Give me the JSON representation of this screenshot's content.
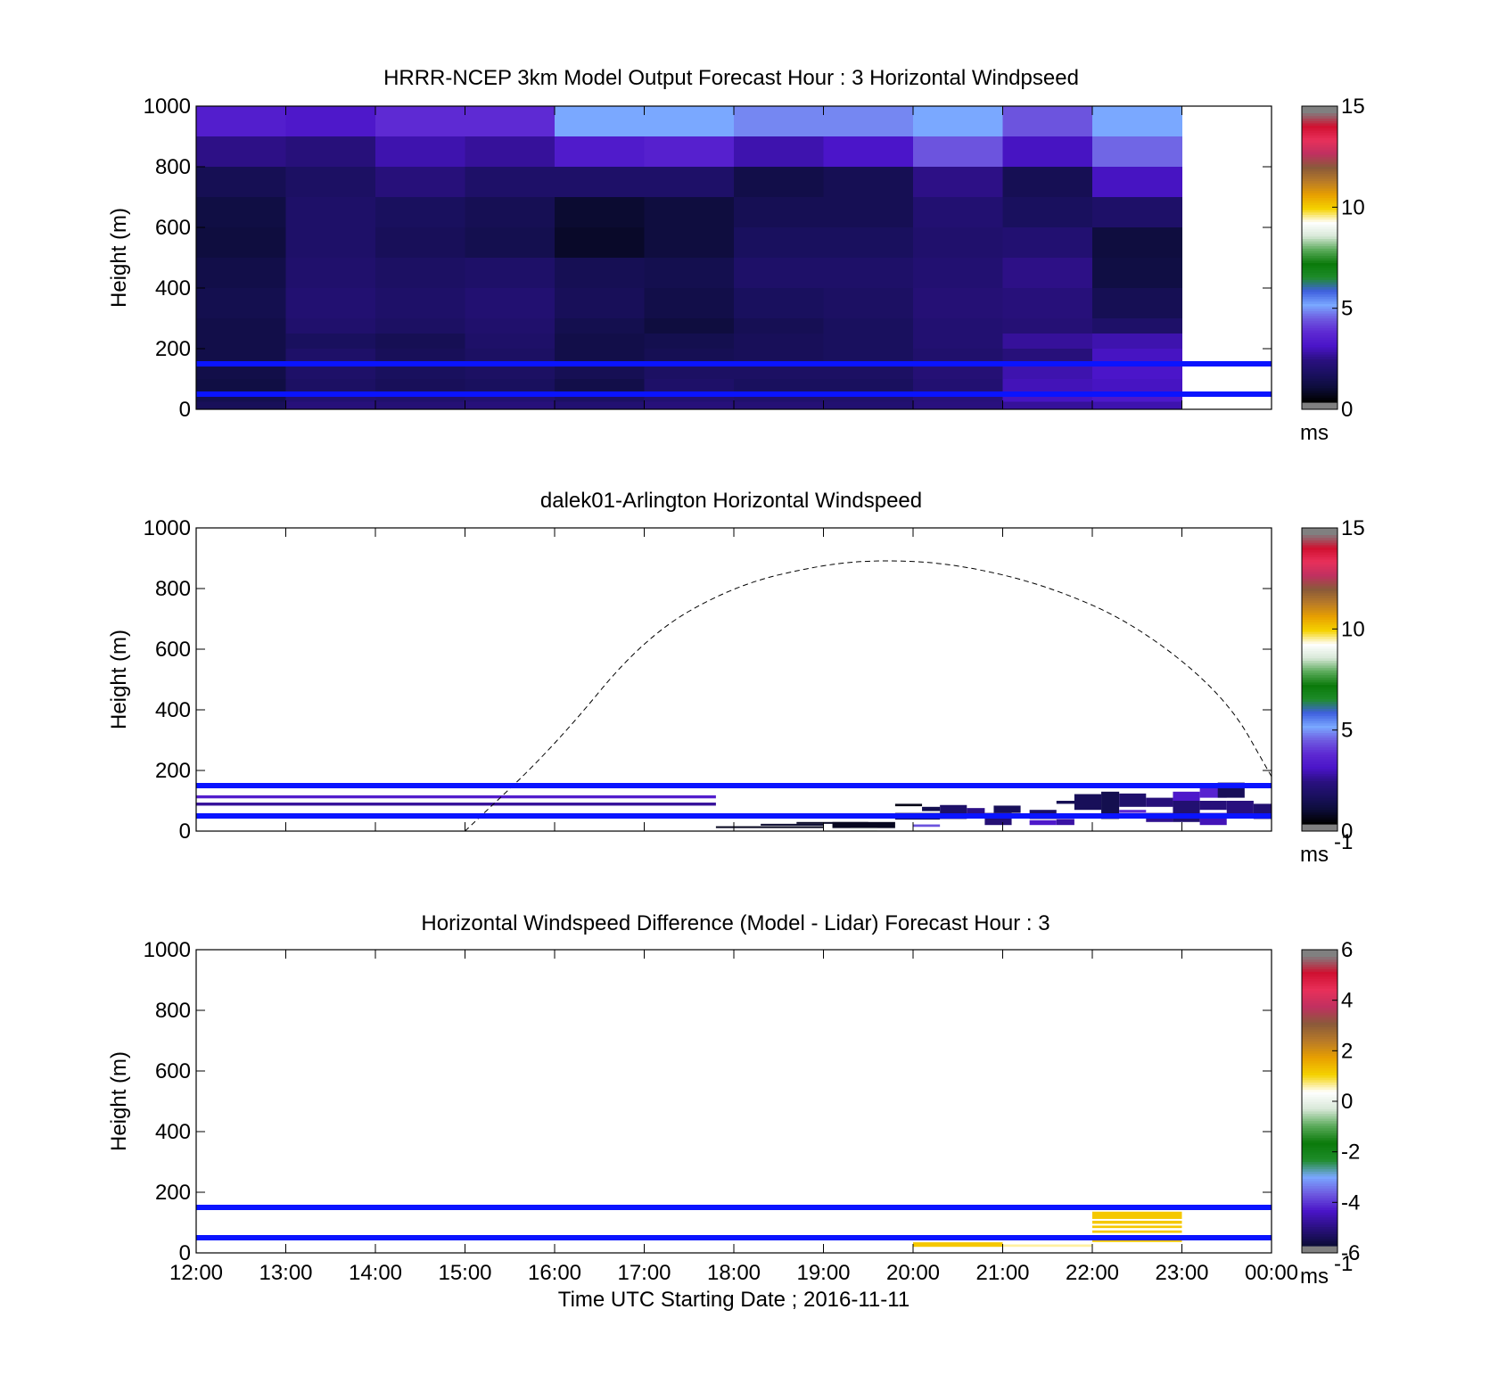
{
  "colors": {
    "guide_line": "#0a14ff",
    "speed_scale": [
      "#000000",
      "#0d0d3a",
      "#1a1060",
      "#2a1080",
      "#4a14c8",
      "#5d28d2",
      "#6e5ae0",
      "#7aa8ff",
      "#4060e0",
      "#1e8c2a",
      "#0a7a0a",
      "#5aaa5a",
      "#d8e8d8",
      "#ffffff",
      "#f5d200",
      "#e8a000",
      "#b87a28",
      "#8a5a3a",
      "#c03060",
      "#e8305a",
      "#d01030",
      "#808080"
    ],
    "diff_scale": [
      "#0d0d3a",
      "#2a1080",
      "#4a14c8",
      "#6e5ae0",
      "#7aa8ff",
      "#1e8c2a",
      "#0a7a0a",
      "#5aaa5a",
      "#d8e8d8",
      "#ffffff",
      "#f5d200",
      "#e8a000",
      "#b87a28",
      "#8a5a3a",
      "#c03060",
      "#e8305a",
      "#d01030",
      "#808080"
    ],
    "diff_positive": "#f5c800",
    "diff_faint": "#fff0a0"
  },
  "chart_data": [
    {
      "type": "heatmap",
      "title": "HRRR-NCEP 3km Model Output   Forecast Hour : 3 Horizontal Windpseed",
      "ylabel": "Height (m)",
      "xlabel": "",
      "ylim": [
        0,
        1000
      ],
      "yticks": [
        "0",
        "200",
        "400",
        "600",
        "800",
        "1000"
      ],
      "xlim_hours": [
        12,
        24
      ],
      "show_xtick_labels": false,
      "colorbar": {
        "range": [
          0,
          15
        ],
        "ticks": [
          "0",
          "5",
          "10",
          "15"
        ],
        "unit_label": "ms",
        "unit_superscript": ""
      },
      "guide_lines_m": [
        150,
        50
      ],
      "model_columns_start_hours": [
        12,
        13,
        14,
        15,
        16,
        17,
        18,
        19,
        20,
        21,
        22
      ],
      "model_column_width_hours": 1,
      "model_levels_m": [
        [
          900,
          1000
        ],
        [
          800,
          900
        ],
        [
          700,
          800
        ],
        [
          600,
          700
        ],
        [
          500,
          600
        ],
        [
          400,
          500
        ],
        [
          300,
          400
        ],
        [
          250,
          300
        ],
        [
          200,
          250
        ],
        [
          150,
          200
        ],
        [
          100,
          150
        ],
        [
          50,
          100
        ],
        [
          25,
          50
        ],
        [
          0,
          25
        ]
      ],
      "model_speed_ms": [
        [
          3.2,
          3.0,
          3.6,
          3.6,
          5.0,
          5.0,
          4.7,
          4.7,
          5.0,
          4.2,
          5.0
        ],
        [
          2.2,
          2.0,
          2.6,
          2.4,
          3.1,
          3.3,
          2.6,
          2.9,
          4.2,
          2.8,
          4.4
        ],
        [
          1.2,
          1.5,
          2.0,
          1.6,
          1.6,
          1.6,
          1.0,
          1.2,
          2.2,
          1.2,
          2.8
        ],
        [
          0.9,
          1.6,
          1.4,
          1.2,
          0.6,
          0.8,
          1.2,
          1.2,
          1.8,
          1.4,
          1.6
        ],
        [
          0.8,
          1.6,
          1.3,
          1.1,
          0.5,
          0.8,
          1.4,
          1.4,
          1.7,
          1.8,
          0.8
        ],
        [
          1.0,
          1.7,
          1.5,
          1.6,
          1.2,
          1.1,
          1.6,
          1.6,
          1.8,
          2.2,
          0.9
        ],
        [
          1.1,
          1.8,
          1.6,
          1.8,
          1.3,
          1.0,
          1.4,
          1.5,
          1.9,
          2.0,
          1.2
        ],
        [
          1.0,
          1.7,
          1.5,
          1.7,
          1.1,
          0.8,
          1.2,
          1.4,
          1.8,
          1.9,
          1.6
        ],
        [
          1.0,
          1.4,
          1.2,
          1.6,
          1.0,
          1.1,
          1.3,
          1.4,
          1.8,
          2.4,
          2.6
        ],
        [
          1.0,
          1.6,
          1.3,
          1.5,
          1.0,
          1.2,
          1.3,
          1.4,
          1.7,
          2.0,
          2.8
        ],
        [
          1.0,
          1.6,
          1.4,
          1.5,
          1.2,
          1.5,
          1.5,
          1.5,
          1.9,
          2.6,
          2.9
        ],
        [
          0.9,
          1.5,
          1.3,
          1.4,
          1.0,
          1.6,
          1.4,
          1.4,
          1.8,
          2.7,
          2.8
        ],
        [
          1.1,
          1.8,
          1.7,
          1.8,
          1.5,
          1.8,
          1.7,
          1.7,
          2.0,
          2.8,
          3.0
        ],
        [
          1.3,
          2.0,
          1.9,
          2.0,
          1.8,
          2.0,
          1.9,
          1.8,
          2.1,
          2.4,
          2.6
        ]
      ]
    },
    {
      "type": "heatmap",
      "title": "dalek01-Arlington  Horizontal Windspeed",
      "ylabel": "Height (m)",
      "xlabel": "",
      "ylim": [
        0,
        1000
      ],
      "yticks": [
        "0",
        "200",
        "400",
        "600",
        "800",
        "1000"
      ],
      "xlim_hours": [
        12,
        24
      ],
      "show_xtick_labels": false,
      "colorbar": {
        "range": [
          0,
          15
        ],
        "ticks": [
          "0",
          "5",
          "10",
          "15"
        ],
        "unit_label": "ms",
        "unit_superscript": "-1"
      },
      "guide_lines_m": [
        150,
        50
      ],
      "boundary_curve": {
        "style": "dashed",
        "points": [
          [
            15.0,
            0
          ],
          [
            16.0,
            280
          ],
          [
            17.0,
            640
          ],
          [
            18.0,
            810
          ],
          [
            19.0,
            880
          ],
          [
            19.7,
            895
          ],
          [
            20.5,
            880
          ],
          [
            21.5,
            810
          ],
          [
            22.5,
            680
          ],
          [
            23.5,
            440
          ],
          [
            24.0,
            180
          ]
        ]
      },
      "lidar_cells": [
        {
          "t0": 12.0,
          "t1": 17.8,
          "h0": 108,
          "h1": 118,
          "v": 3.2
        },
        {
          "t0": 12.0,
          "t1": 17.8,
          "h0": 84,
          "h1": 94,
          "v": 2.4
        },
        {
          "t0": 17.8,
          "t1": 19.0,
          "h0": 10,
          "h1": 16,
          "v": 0.4
        },
        {
          "t0": 18.3,
          "t1": 19.0,
          "h0": 18,
          "h1": 24,
          "v": 0.6
        },
        {
          "t0": 18.7,
          "t1": 19.5,
          "h0": 24,
          "h1": 30,
          "v": 0.5
        },
        {
          "t0": 19.1,
          "t1": 19.8,
          "h0": 10,
          "h1": 30,
          "v": 0.4
        },
        {
          "t0": 19.3,
          "t1": 19.6,
          "h0": 2,
          "h1": 10,
          "v": 9.0
        },
        {
          "t0": 19.8,
          "t1": 20.3,
          "h0": 38,
          "h1": 60,
          "v": 1.2
        },
        {
          "t0": 19.8,
          "t1": 20.1,
          "h0": 82,
          "h1": 90,
          "v": 0.3
        },
        {
          "t0": 20.1,
          "t1": 20.3,
          "h0": 66,
          "h1": 80,
          "v": 1.1
        },
        {
          "t0": 20.0,
          "t1": 20.3,
          "h0": 14,
          "h1": 22,
          "v": 4.2
        },
        {
          "t0": 20.3,
          "t1": 20.6,
          "h0": 40,
          "h1": 86,
          "v": 1.6
        },
        {
          "t0": 20.6,
          "t1": 20.8,
          "h0": 50,
          "h1": 76,
          "v": 2.2
        },
        {
          "t0": 20.8,
          "t1": 21.1,
          "h0": 20,
          "h1": 60,
          "v": 1.9
        },
        {
          "t0": 20.9,
          "t1": 21.2,
          "h0": 60,
          "h1": 84,
          "v": 1.3
        },
        {
          "t0": 21.3,
          "t1": 21.6,
          "h0": 40,
          "h1": 70,
          "v": 1.5
        },
        {
          "t0": 21.6,
          "t1": 21.8,
          "h0": 20,
          "h1": 40,
          "v": 2.5
        },
        {
          "t0": 21.3,
          "t1": 21.6,
          "h0": 20,
          "h1": 36,
          "v": 3.0
        },
        {
          "t0": 21.6,
          "t1": 21.9,
          "h0": 90,
          "h1": 100,
          "v": 1.2
        },
        {
          "t0": 21.8,
          "t1": 22.1,
          "h0": 70,
          "h1": 122,
          "v": 1.3
        },
        {
          "t0": 22.1,
          "t1": 22.3,
          "h0": 40,
          "h1": 130,
          "v": 1.1
        },
        {
          "t0": 22.3,
          "t1": 22.6,
          "h0": 80,
          "h1": 124,
          "v": 1.7
        },
        {
          "t0": 22.3,
          "t1": 22.6,
          "h0": 60,
          "h1": 70,
          "v": 3.6
        },
        {
          "t0": 22.6,
          "t1": 22.9,
          "h0": 30,
          "h1": 60,
          "v": 2.3
        },
        {
          "t0": 22.6,
          "t1": 22.9,
          "h0": 80,
          "h1": 110,
          "v": 2.0
        },
        {
          "t0": 22.9,
          "t1": 23.2,
          "h0": 30,
          "h1": 100,
          "v": 1.8
        },
        {
          "t0": 22.9,
          "t1": 23.2,
          "h0": 100,
          "h1": 130,
          "v": 3.0
        },
        {
          "t0": 23.2,
          "t1": 23.5,
          "h0": 20,
          "h1": 60,
          "v": 2.7
        },
        {
          "t0": 23.2,
          "t1": 23.5,
          "h0": 70,
          "h1": 100,
          "v": 2.0
        },
        {
          "t0": 23.2,
          "t1": 23.5,
          "h0": 110,
          "h1": 150,
          "v": 3.4
        },
        {
          "t0": 23.4,
          "t1": 23.7,
          "h0": 110,
          "h1": 160,
          "v": 1.3
        },
        {
          "t0": 23.5,
          "t1": 23.8,
          "h0": 50,
          "h1": 100,
          "v": 2.1
        },
        {
          "t0": 23.8,
          "t1": 24.0,
          "h0": 40,
          "h1": 90,
          "v": 1.8
        }
      ]
    },
    {
      "type": "heatmap",
      "title": "Horizontal Windspeed Difference (Model - Lidar) Forecast Hour : 3",
      "ylabel": "Height (m)",
      "xlabel": "Time UTC  Starting Date ; 2016-11-11",
      "ylim": [
        0,
        1000
      ],
      "yticks": [
        "0",
        "200",
        "400",
        "600",
        "800",
        "1000"
      ],
      "xlim_hours": [
        12,
        24
      ],
      "show_xtick_labels": true,
      "xticks": [
        "12:00",
        "13:00",
        "14:00",
        "15:00",
        "16:00",
        "17:00",
        "18:00",
        "19:00",
        "20:00",
        "21:00",
        "22:00",
        "23:00",
        "00:00"
      ],
      "colorbar": {
        "range": [
          -6,
          6
        ],
        "ticks": [
          "-6",
          "-4",
          "-2",
          "0",
          "2",
          "4",
          "6"
        ],
        "unit_label": "ms",
        "unit_superscript": "-1"
      },
      "guide_lines_m": [
        150,
        50
      ],
      "diff_cells": [
        {
          "t0": 20.0,
          "t1": 21.0,
          "h0": 20,
          "h1": 35,
          "v": 1.3
        },
        {
          "t0": 21.0,
          "t1": 22.0,
          "h0": 20,
          "h1": 28,
          "v": 0.2
        },
        {
          "t0": 22.0,
          "t1": 23.0,
          "h0": 112,
          "h1": 136,
          "v": 1.3
        },
        {
          "t0": 22.0,
          "t1": 23.0,
          "h0": 96,
          "h1": 106,
          "v": 0.5
        },
        {
          "t0": 22.0,
          "t1": 23.0,
          "h0": 82,
          "h1": 90,
          "v": 1.2
        },
        {
          "t0": 22.0,
          "t1": 23.0,
          "h0": 66,
          "h1": 74,
          "v": 1.2
        },
        {
          "t0": 22.0,
          "t1": 23.0,
          "h0": 36,
          "h1": 44,
          "v": 1.0
        }
      ]
    }
  ]
}
